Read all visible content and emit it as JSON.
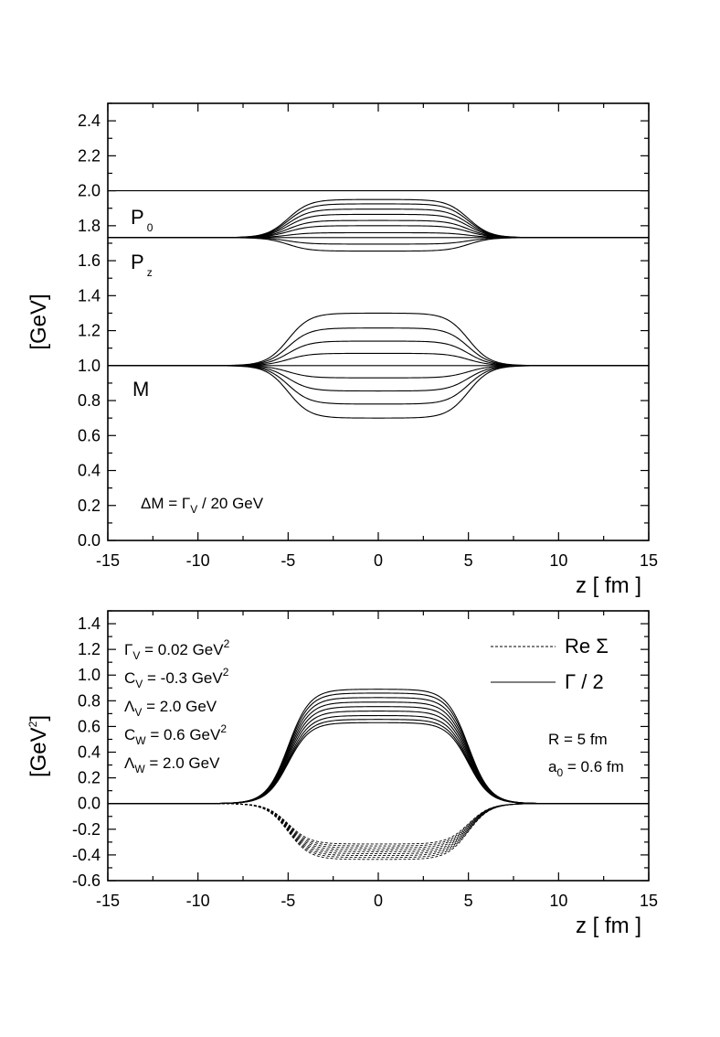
{
  "chart_data": [
    {
      "type": "line",
      "xlabel": "z [ fm ]",
      "ylabel": "[GeV]",
      "xlim": [
        -15,
        15
      ],
      "ylim": [
        0.0,
        2.5
      ],
      "xticks": [
        "-15",
        "-10",
        "-5",
        "0",
        "5",
        "10",
        "15"
      ],
      "yticks": [
        "0.0",
        "0.2",
        "0.4",
        "0.6",
        "0.8",
        "1.0",
        "1.2",
        "1.4",
        "1.6",
        "1.8",
        "2.0",
        "2.2",
        "2.4"
      ],
      "labels": {
        "p0": {
          "main": "P",
          "sub": "0"
        },
        "pz": {
          "main": "P",
          "sub": "z"
        },
        "m": {
          "main": "M"
        },
        "formula": {
          "pre": "ΔM = Γ",
          "sub": "V",
          "post": " / 20 GeV"
        }
      },
      "profile": {
        "radius_fm": 5,
        "diffuseness_fm": 0.6
      },
      "series": [
        {
          "group": "P0",
          "outside": 2.0,
          "center_values": [
            2.0
          ]
        },
        {
          "group": "Pz",
          "outside": 1.732,
          "center_values": [
            1.95,
            1.925,
            1.895,
            1.865,
            1.83,
            1.8,
            1.76,
            1.732,
            1.695,
            1.655
          ]
        },
        {
          "group": "M",
          "outside": 1.0,
          "center_values": [
            1.3,
            1.215,
            1.14,
            1.07,
            1.0,
            0.93,
            0.855,
            0.78,
            0.7
          ]
        }
      ]
    },
    {
      "type": "line",
      "xlabel": "z [ fm ]",
      "ylabel": "[GeV²]",
      "xlim": [
        -15,
        15
      ],
      "ylim": [
        -0.6,
        1.5
      ],
      "xticks": [
        "-15",
        "-10",
        "-5",
        "0",
        "5",
        "10",
        "15"
      ],
      "yticks": [
        "-0.6",
        "-0.4",
        "-0.2",
        "0.0",
        "0.2",
        "0.4",
        "0.6",
        "0.8",
        "1.0",
        "1.2",
        "1.4"
      ],
      "legend": [
        {
          "label": "Re Σ",
          "style": "dashed"
        },
        {
          "label": "Γ / 2",
          "style": "solid"
        }
      ],
      "legend_position": "top-right",
      "params": [
        {
          "sym": "Γ",
          "sub": "V",
          "text": " = 0.02 GeV",
          "sup": "2"
        },
        {
          "sym": "C",
          "sub": "V",
          "text": " = -0.3 GeV",
          "sup": "2"
        },
        {
          "sym": "Λ",
          "sub": "V",
          "text": " = 2.0 GeV",
          "sup": ""
        },
        {
          "sym": "C",
          "sub": "W",
          "text": " = 0.6 GeV",
          "sup": "2"
        },
        {
          "sym": "Λ",
          "sub": "W",
          "text": " = 2.0 GeV",
          "sup": ""
        }
      ],
      "geometry_params": [
        {
          "text": "R = 5 fm"
        },
        {
          "pre": "a",
          "sub": "0",
          "post": " = 0.6 fm"
        }
      ],
      "profile": {
        "radius_fm": 5,
        "diffuseness_fm": 0.6
      },
      "series": [
        {
          "name": "Γ / 2",
          "style": "solid",
          "center_values": [
            0.89,
            0.86,
            0.825,
            0.79,
            0.755,
            0.72,
            0.685,
            0.655,
            0.63
          ]
        },
        {
          "name": "Re Σ",
          "style": "dashed",
          "center_values": [
            -0.315,
            -0.33,
            -0.345,
            -0.36,
            -0.375,
            -0.39,
            -0.405,
            -0.42,
            -0.435
          ]
        }
      ]
    }
  ]
}
